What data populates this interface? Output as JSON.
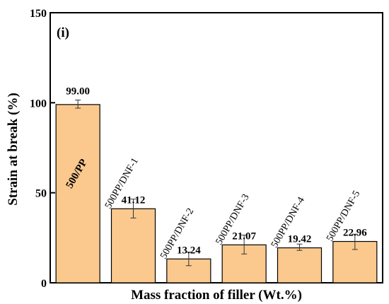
{
  "chart_data": {
    "type": "bar",
    "panel_label": "(i)",
    "xlabel": "Mass fraction of filler (Wt.%)",
    "ylabel": "Strain at break (%)",
    "ylim": [
      0,
      150
    ],
    "yticks": [
      "0",
      "50",
      "100",
      "150"
    ],
    "categories": [
      "500/PP",
      "500PP/DNF-1",
      "500PP/DNF-2",
      "500PP/DNF-3",
      "500PP/DNF-4",
      "500PP/DNF-5"
    ],
    "values": [
      99.0,
      41.12,
      13.24,
      21.07,
      19.42,
      22.96
    ],
    "value_labels": [
      "99.00",
      "41.12",
      "13.24",
      "21.07",
      "19.42",
      "22.96"
    ],
    "error_upper": [
      101.5,
      46.5,
      17.0,
      26.5,
      21.5,
      27.0
    ],
    "error_lower": [
      97.0,
      36.0,
      9.5,
      16.0,
      18.0,
      18.5
    ],
    "bar_color": "#fbc98e",
    "bar_edge_color": "#000000",
    "grid": false,
    "legend": "none"
  }
}
